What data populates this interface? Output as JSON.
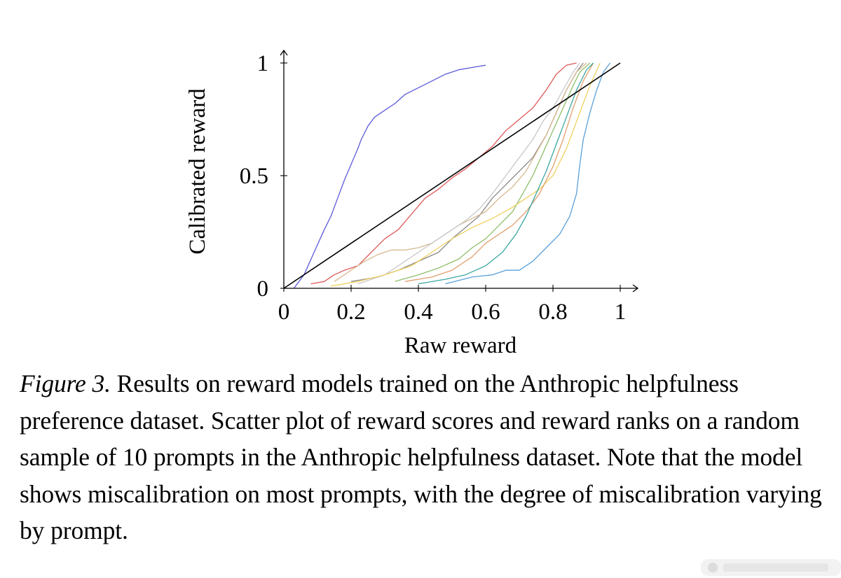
{
  "caption": {
    "lead": "Figure 3.",
    "body": " Results on reward models trained on the Anthropic helpfulness preference dataset. Scatter plot of reward scores and reward ranks on a random sample of 10 prompts in the Anthropic helpfulness dataset. Note that the model shows miscalibration on most prompts, with the degree of miscalibration varying by prompt."
  },
  "chart_data": {
    "type": "line",
    "title": "",
    "xlabel": "Raw reward",
    "ylabel": "Calibrated reward",
    "xlim": [
      0,
      1
    ],
    "ylim": [
      0,
      1
    ],
    "xticks": [
      "0",
      "0.2",
      "0.4",
      "0.6",
      "0.8",
      "1"
    ],
    "yticks": [
      "0",
      "0.5",
      "1"
    ],
    "grid": false,
    "legend": "none",
    "reference_line": {
      "color": "#000000",
      "points": [
        [
          0,
          0
        ],
        [
          1,
          1
        ]
      ]
    },
    "series": [
      {
        "color": "#5b5bd6",
        "points": [
          [
            0.03,
            0.0
          ],
          [
            0.06,
            0.06
          ],
          [
            0.09,
            0.16
          ],
          [
            0.12,
            0.26
          ],
          [
            0.14,
            0.32
          ],
          [
            0.16,
            0.4
          ],
          [
            0.18,
            0.48
          ],
          [
            0.2,
            0.55
          ],
          [
            0.22,
            0.62
          ],
          [
            0.23,
            0.66
          ],
          [
            0.25,
            0.72
          ],
          [
            0.27,
            0.76
          ],
          [
            0.3,
            0.79
          ],
          [
            0.33,
            0.82
          ],
          [
            0.36,
            0.86
          ],
          [
            0.4,
            0.89
          ],
          [
            0.44,
            0.92
          ],
          [
            0.48,
            0.95
          ],
          [
            0.52,
            0.97
          ],
          [
            0.56,
            0.98
          ],
          [
            0.6,
            0.99
          ]
        ]
      },
      {
        "color": "#e05a5a",
        "points": [
          [
            0.08,
            0.02
          ],
          [
            0.12,
            0.03
          ],
          [
            0.15,
            0.06
          ],
          [
            0.18,
            0.08
          ],
          [
            0.22,
            0.1
          ],
          [
            0.26,
            0.16
          ],
          [
            0.3,
            0.22
          ],
          [
            0.34,
            0.26
          ],
          [
            0.38,
            0.33
          ],
          [
            0.42,
            0.4
          ],
          [
            0.46,
            0.44
          ],
          [
            0.5,
            0.49
          ],
          [
            0.54,
            0.53
          ],
          [
            0.58,
            0.58
          ],
          [
            0.62,
            0.63
          ],
          [
            0.66,
            0.7
          ],
          [
            0.7,
            0.75
          ],
          [
            0.74,
            0.8
          ],
          [
            0.78,
            0.88
          ],
          [
            0.81,
            0.95
          ],
          [
            0.84,
            0.99
          ],
          [
            0.87,
            1.0
          ]
        ]
      },
      {
        "color": "#888888",
        "points": [
          [
            0.2,
            0.03
          ],
          [
            0.28,
            0.05
          ],
          [
            0.34,
            0.08
          ],
          [
            0.4,
            0.12
          ],
          [
            0.46,
            0.16
          ],
          [
            0.5,
            0.22
          ],
          [
            0.54,
            0.27
          ],
          [
            0.58,
            0.32
          ],
          [
            0.62,
            0.4
          ],
          [
            0.66,
            0.46
          ],
          [
            0.7,
            0.52
          ],
          [
            0.74,
            0.58
          ],
          [
            0.78,
            0.68
          ],
          [
            0.81,
            0.78
          ],
          [
            0.84,
            0.88
          ],
          [
            0.87,
            0.96
          ],
          [
            0.89,
            1.0
          ]
        ]
      },
      {
        "color": "#d8b890",
        "points": [
          [
            0.15,
            0.03
          ],
          [
            0.2,
            0.08
          ],
          [
            0.24,
            0.12
          ],
          [
            0.28,
            0.15
          ],
          [
            0.32,
            0.17
          ],
          [
            0.36,
            0.17
          ],
          [
            0.4,
            0.18
          ],
          [
            0.44,
            0.2
          ],
          [
            0.48,
            0.24
          ],
          [
            0.52,
            0.28
          ],
          [
            0.56,
            0.31
          ],
          [
            0.6,
            0.34
          ],
          [
            0.64,
            0.4
          ],
          [
            0.68,
            0.45
          ],
          [
            0.72,
            0.52
          ],
          [
            0.75,
            0.6
          ],
          [
            0.78,
            0.68
          ],
          [
            0.81,
            0.78
          ],
          [
            0.84,
            0.88
          ],
          [
            0.87,
            0.96
          ],
          [
            0.9,
            1.0
          ]
        ]
      },
      {
        "color": "#c8c8c8",
        "points": [
          [
            0.22,
            0.02
          ],
          [
            0.3,
            0.06
          ],
          [
            0.36,
            0.12
          ],
          [
            0.42,
            0.18
          ],
          [
            0.48,
            0.24
          ],
          [
            0.54,
            0.3
          ],
          [
            0.58,
            0.35
          ],
          [
            0.62,
            0.42
          ],
          [
            0.66,
            0.5
          ],
          [
            0.7,
            0.58
          ],
          [
            0.74,
            0.66
          ],
          [
            0.77,
            0.74
          ],
          [
            0.8,
            0.8
          ],
          [
            0.83,
            0.88
          ],
          [
            0.86,
            0.96
          ],
          [
            0.88,
            1.0
          ]
        ]
      },
      {
        "color": "#8fbf6a",
        "points": [
          [
            0.33,
            0.03
          ],
          [
            0.4,
            0.06
          ],
          [
            0.46,
            0.09
          ],
          [
            0.52,
            0.13
          ],
          [
            0.56,
            0.18
          ],
          [
            0.6,
            0.22
          ],
          [
            0.64,
            0.28
          ],
          [
            0.68,
            0.34
          ],
          [
            0.71,
            0.42
          ],
          [
            0.74,
            0.5
          ],
          [
            0.77,
            0.6
          ],
          [
            0.8,
            0.7
          ],
          [
            0.83,
            0.8
          ],
          [
            0.86,
            0.9
          ],
          [
            0.88,
            0.96
          ],
          [
            0.91,
            1.0
          ]
        ]
      },
      {
        "color": "#f0d060",
        "points": [
          [
            0.14,
            0.01
          ],
          [
            0.22,
            0.03
          ],
          [
            0.3,
            0.06
          ],
          [
            0.38,
            0.1
          ],
          [
            0.44,
            0.16
          ],
          [
            0.5,
            0.22
          ],
          [
            0.56,
            0.27
          ],
          [
            0.62,
            0.31
          ],
          [
            0.68,
            0.36
          ],
          [
            0.72,
            0.4
          ],
          [
            0.76,
            0.44
          ],
          [
            0.8,
            0.5
          ],
          [
            0.84,
            0.62
          ],
          [
            0.88,
            0.78
          ],
          [
            0.91,
            0.9
          ],
          [
            0.94,
            1.0
          ]
        ]
      },
      {
        "color": "#e0a070",
        "points": [
          [
            0.36,
            0.03
          ],
          [
            0.44,
            0.05
          ],
          [
            0.5,
            0.08
          ],
          [
            0.56,
            0.14
          ],
          [
            0.6,
            0.2
          ],
          [
            0.64,
            0.24
          ],
          [
            0.68,
            0.28
          ],
          [
            0.72,
            0.34
          ],
          [
            0.76,
            0.42
          ],
          [
            0.8,
            0.54
          ],
          [
            0.83,
            0.66
          ],
          [
            0.86,
            0.8
          ],
          [
            0.89,
            0.92
          ],
          [
            0.92,
            1.0
          ]
        ]
      },
      {
        "color": "#5aa0d8",
        "points": [
          [
            0.48,
            0.02
          ],
          [
            0.56,
            0.05
          ],
          [
            0.62,
            0.06
          ],
          [
            0.66,
            0.08
          ],
          [
            0.7,
            0.08
          ],
          [
            0.74,
            0.12
          ],
          [
            0.78,
            0.18
          ],
          [
            0.82,
            0.24
          ],
          [
            0.85,
            0.32
          ],
          [
            0.87,
            0.42
          ],
          [
            0.88,
            0.55
          ],
          [
            0.89,
            0.66
          ],
          [
            0.91,
            0.78
          ],
          [
            0.93,
            0.88
          ],
          [
            0.95,
            0.96
          ],
          [
            0.97,
            1.0
          ]
        ]
      },
      {
        "color": "#3aa7a0",
        "points": [
          [
            0.4,
            0.02
          ],
          [
            0.48,
            0.04
          ],
          [
            0.54,
            0.06
          ],
          [
            0.6,
            0.1
          ],
          [
            0.65,
            0.16
          ],
          [
            0.69,
            0.24
          ],
          [
            0.72,
            0.32
          ],
          [
            0.75,
            0.42
          ],
          [
            0.78,
            0.52
          ],
          [
            0.81,
            0.64
          ],
          [
            0.84,
            0.76
          ],
          [
            0.87,
            0.88
          ],
          [
            0.9,
            0.97
          ],
          [
            0.92,
            1.0
          ]
        ]
      }
    ]
  }
}
